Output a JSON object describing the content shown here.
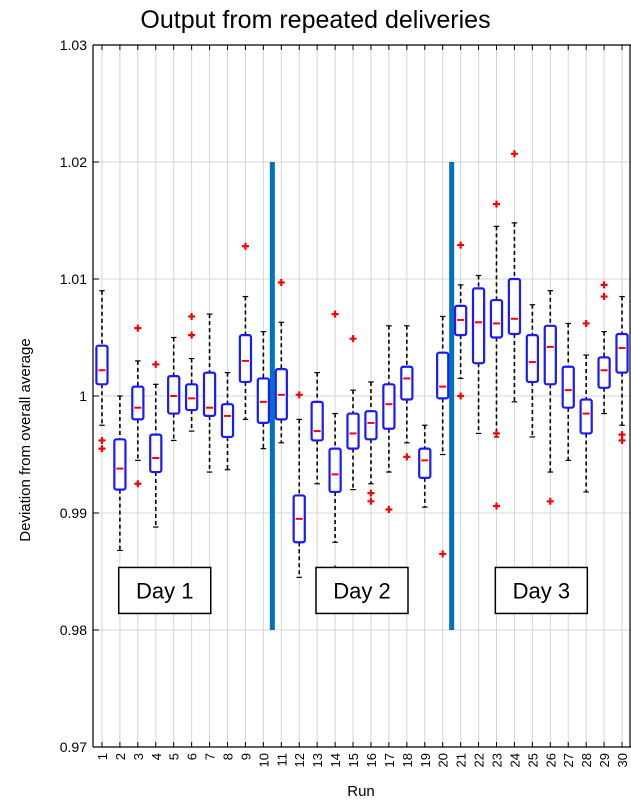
{
  "chart_data": {
    "type": "box",
    "title": "Output from repeated deliveries",
    "xlabel": "Run",
    "ylabel": "Deviation from overall average",
    "ylim": [
      0.97,
      1.03
    ],
    "yticks": [
      "0.97",
      "0.98",
      "0.99",
      "1",
      "1.01",
      "1.02",
      "1.03"
    ],
    "categories": [
      "1",
      "2",
      "3",
      "4",
      "5",
      "6",
      "7",
      "8",
      "9",
      "10",
      "11",
      "12",
      "13",
      "14",
      "15",
      "16",
      "17",
      "18",
      "19",
      "20",
      "21",
      "22",
      "23",
      "24",
      "25",
      "26",
      "27",
      "28",
      "29",
      "30"
    ],
    "grid": true,
    "boxes": [
      {
        "run": "1",
        "whisker_low": 0.9975,
        "q1": 1.001,
        "median": 1.0022,
        "q3": 1.0043,
        "whisker_high": 1.009,
        "outliers": [
          0.9955,
          0.9962
        ]
      },
      {
        "run": "2",
        "whisker_low": 0.9868,
        "q1": 0.992,
        "median": 0.9938,
        "q3": 0.9963,
        "whisker_high": 1.0,
        "outliers": []
      },
      {
        "run": "3",
        "whisker_low": 0.9945,
        "q1": 0.998,
        "median": 0.999,
        "q3": 1.0008,
        "whisker_high": 1.003,
        "outliers": [
          0.9925,
          1.0058
        ]
      },
      {
        "run": "4",
        "whisker_low": 0.9888,
        "q1": 0.9935,
        "median": 0.9947,
        "q3": 0.9967,
        "whisker_high": 1.001,
        "outliers": [
          1.0027
        ]
      },
      {
        "run": "5",
        "whisker_low": 0.9962,
        "q1": 0.9985,
        "median": 1.0,
        "q3": 1.0017,
        "whisker_high": 1.005,
        "outliers": []
      },
      {
        "run": "6",
        "whisker_low": 0.997,
        "q1": 0.9988,
        "median": 0.9998,
        "q3": 1.001,
        "whisker_high": 1.0032,
        "outliers": [
          1.0052,
          1.0068
        ]
      },
      {
        "run": "7",
        "whisker_low": 0.9935,
        "q1": 0.9983,
        "median": 0.999,
        "q3": 1.002,
        "whisker_high": 1.007,
        "outliers": []
      },
      {
        "run": "8",
        "whisker_low": 0.9937,
        "q1": 0.9965,
        "median": 0.9983,
        "q3": 0.9993,
        "whisker_high": 1.002,
        "outliers": []
      },
      {
        "run": "9",
        "whisker_low": 0.998,
        "q1": 1.0012,
        "median": 1.003,
        "q3": 1.0052,
        "whisker_high": 1.0085,
        "outliers": [
          1.0128
        ]
      },
      {
        "run": "10",
        "whisker_low": 0.9955,
        "q1": 0.9977,
        "median": 0.9995,
        "q3": 1.0015,
        "whisker_high": 1.0055,
        "outliers": []
      },
      {
        "run": "11",
        "whisker_low": 0.996,
        "q1": 0.998,
        "median": 1.0001,
        "q3": 1.0023,
        "whisker_high": 1.0063,
        "outliers": [
          1.0097
        ]
      },
      {
        "run": "12",
        "whisker_low": 0.9845,
        "q1": 0.9875,
        "median": 0.9895,
        "q3": 0.9915,
        "whisker_high": 0.998,
        "outliers": [
          1.0001
        ]
      },
      {
        "run": "13",
        "whisker_low": 0.9925,
        "q1": 0.9962,
        "median": 0.997,
        "q3": 0.9995,
        "whisker_high": 1.002,
        "outliers": []
      },
      {
        "run": "14",
        "whisker_low": 0.9875,
        "q1": 0.9918,
        "median": 0.9933,
        "q3": 0.9955,
        "whisker_high": 0.9985,
        "outliers": [
          0.9852,
          1.007
        ]
      },
      {
        "run": "15",
        "whisker_low": 0.992,
        "q1": 0.9955,
        "median": 0.9968,
        "q3": 0.9985,
        "whisker_high": 1.0005,
        "outliers": [
          1.0049
        ]
      },
      {
        "run": "16",
        "whisker_low": 0.9925,
        "q1": 0.9963,
        "median": 0.9977,
        "q3": 0.9987,
        "whisker_high": 1.0012,
        "outliers": [
          0.991,
          0.9917
        ]
      },
      {
        "run": "17",
        "whisker_low": 0.9935,
        "q1": 0.9972,
        "median": 0.9993,
        "q3": 1.001,
        "whisker_high": 1.006,
        "outliers": [
          0.9903
        ]
      },
      {
        "run": "18",
        "whisker_low": 0.996,
        "q1": 0.9997,
        "median": 1.0015,
        "q3": 1.0025,
        "whisker_high": 1.006,
        "outliers": [
          0.9948
        ]
      },
      {
        "run": "19",
        "whisker_low": 0.9905,
        "q1": 0.993,
        "median": 0.9945,
        "q3": 0.9955,
        "whisker_high": 0.9975,
        "outliers": []
      },
      {
        "run": "20",
        "whisker_low": 0.995,
        "q1": 0.9998,
        "median": 1.0008,
        "q3": 1.0037,
        "whisker_high": 1.0068,
        "outliers": [
          0.9865
        ]
      },
      {
        "run": "21",
        "whisker_low": 1.0015,
        "q1": 1.0052,
        "median": 1.0065,
        "q3": 1.0077,
        "whisker_high": 1.0095,
        "outliers": [
          1.0,
          1.0129
        ]
      },
      {
        "run": "22",
        "whisker_low": 0.9968,
        "q1": 1.0028,
        "median": 1.0063,
        "q3": 1.0092,
        "whisker_high": 1.0103,
        "outliers": []
      },
      {
        "run": "23",
        "whisker_low": 0.9965,
        "q1": 1.005,
        "median": 1.0062,
        "q3": 1.0082,
        "whisker_high": 1.0145,
        "outliers": [
          0.9906,
          0.9968,
          1.0164
        ]
      },
      {
        "run": "24",
        "whisker_low": 0.9995,
        "q1": 1.0053,
        "median": 1.0066,
        "q3": 1.01,
        "whisker_high": 1.0148,
        "outliers": [
          1.0207
        ]
      },
      {
        "run": "25",
        "whisker_low": 0.9965,
        "q1": 1.0012,
        "median": 1.0029,
        "q3": 1.0052,
        "whisker_high": 1.0078,
        "outliers": []
      },
      {
        "run": "26",
        "whisker_low": 0.9935,
        "q1": 1.001,
        "median": 1.0042,
        "q3": 1.006,
        "whisker_high": 1.009,
        "outliers": [
          0.991
        ]
      },
      {
        "run": "27",
        "whisker_low": 0.9945,
        "q1": 0.999,
        "median": 1.0005,
        "q3": 1.0025,
        "whisker_high": 1.0062,
        "outliers": []
      },
      {
        "run": "28",
        "whisker_low": 0.9918,
        "q1": 0.9968,
        "median": 0.9985,
        "q3": 0.9997,
        "whisker_high": 1.0035,
        "outliers": [
          1.0062
        ]
      },
      {
        "run": "29",
        "whisker_low": 0.9985,
        "q1": 1.0007,
        "median": 1.0022,
        "q3": 1.0033,
        "whisker_high": 1.0055,
        "outliers": [
          1.0085,
          1.0095
        ]
      },
      {
        "run": "30",
        "whisker_low": 0.9975,
        "q1": 1.002,
        "median": 1.0041,
        "q3": 1.0053,
        "whisker_high": 1.0085,
        "outliers": [
          0.9962,
          0.9967
        ]
      }
    ],
    "separators": [
      {
        "after_run": "10",
        "y_from": 0.98,
        "y_to": 1.02
      },
      {
        "after_run": "20",
        "y_from": 0.98,
        "y_to": 1.02
      }
    ],
    "annotations": [
      {
        "text": "Day 1",
        "run_center": 4.5,
        "y": 0.9815
      },
      {
        "text": "Day 2",
        "run_center": 15.5,
        "y": 0.9815
      },
      {
        "text": "Day 3",
        "run_center": 25.5,
        "y": 0.9815
      }
    ],
    "colors": {
      "box": "#1a1aff",
      "median": "#ff0000",
      "outlier": "#ff0000",
      "whisker": "#000000",
      "separator": "#0070c0",
      "grid": "#d4d4d4"
    }
  }
}
